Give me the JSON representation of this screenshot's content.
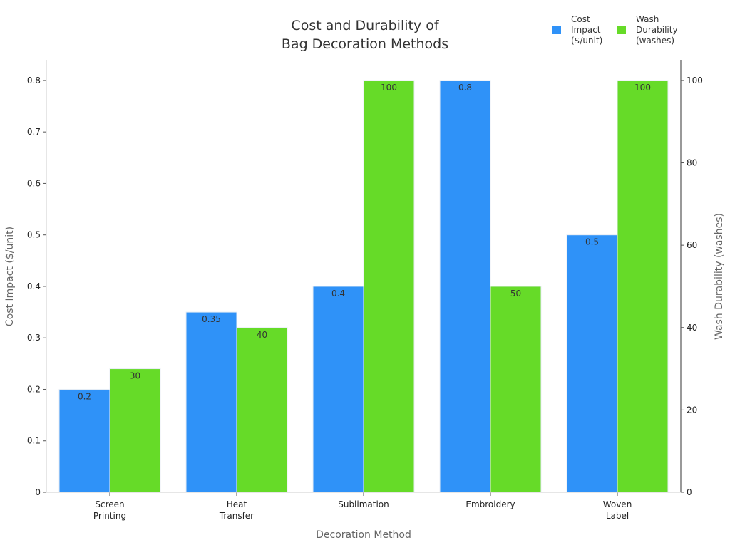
{
  "chart_data": {
    "type": "bar",
    "title": "Cost and Durability of\nBag Decoration Methods",
    "xlabel": "Decoration Method",
    "ylabel_left": "Cost Impact ($/unit)",
    "ylabel_right": "Wash Durability (washes)",
    "categories": [
      "Screen\nPrinting",
      "Heat\nTransfer",
      "Sublimation",
      "Embroidery",
      "Woven\nLabel"
    ],
    "series": [
      {
        "name": "Cost\nImpact\n($/unit)",
        "axis": "left",
        "color": "#2f92f8",
        "values": [
          0.2,
          0.35,
          0.4,
          0.8,
          0.5
        ],
        "labels": [
          "0.2",
          "0.35",
          "0.4",
          "0.8",
          "0.5"
        ]
      },
      {
        "name": "Wash\nDurability\n(washes)",
        "axis": "right",
        "color": "#66db28",
        "values": [
          30,
          40,
          100,
          50,
          100
        ],
        "labels": [
          "30",
          "40",
          "100",
          "50",
          "100"
        ]
      }
    ],
    "ylim_left": [
      0,
      0.84
    ],
    "ylim_right": [
      0,
      105
    ],
    "yticks_left": [
      "0",
      "0.1",
      "0.2",
      "0.3",
      "0.4",
      "0.5",
      "0.6",
      "0.7",
      "0.8"
    ],
    "yticks_right": [
      "0",
      "20",
      "40",
      "60",
      "80",
      "100"
    ],
    "grid": false,
    "legend": "top-right"
  }
}
